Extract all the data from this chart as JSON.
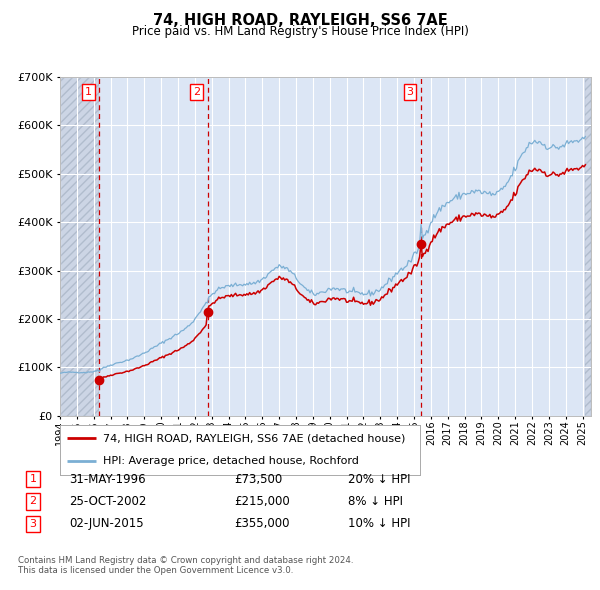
{
  "title": "74, HIGH ROAD, RAYLEIGH, SS6 7AE",
  "subtitle": "Price paid vs. HM Land Registry's House Price Index (HPI)",
  "footer": "Contains HM Land Registry data © Crown copyright and database right 2024.\nThis data is licensed under the Open Government Licence v3.0.",
  "legend_property": "74, HIGH ROAD, RAYLEIGH, SS6 7AE (detached house)",
  "legend_hpi": "HPI: Average price, detached house, Rochford",
  "transactions": [
    {
      "num": 1,
      "date": "31-MAY-1996",
      "price": 73500,
      "hpi_note": "20% ↓ HPI",
      "year_idx": 28
    },
    {
      "num": 2,
      "date": "25-OCT-2002",
      "price": 215000,
      "hpi_note": "8% ↓ HPI",
      "year_idx": 102
    },
    {
      "num": 3,
      "date": "02-JUN-2015",
      "price": 355000,
      "hpi_note": "10% ↓ HPI",
      "year_idx": 258
    }
  ],
  "property_line_color": "#cc0000",
  "hpi_line_color": "#7bafd4",
  "dashed_line_color": "#cc0000",
  "background_color": "#ffffff",
  "plot_bg_color": "#dce6f5",
  "grid_color": "#ffffff",
  "ylim": [
    0,
    700000
  ],
  "xlim_start": 1994.0,
  "xlim_end": 2025.5,
  "hatch_end": 1996.3,
  "hatch_end2": 2025.17
}
